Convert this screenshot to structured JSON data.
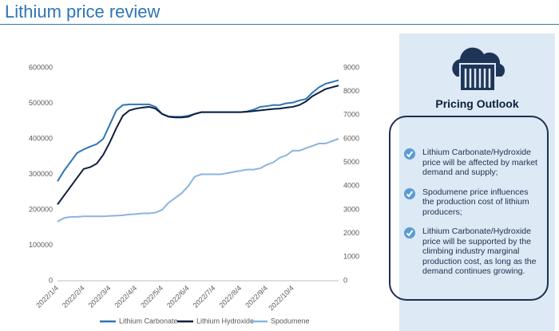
{
  "header": {
    "title": "Lithium price review"
  },
  "chart_data": {
    "type": "line",
    "categories": [
      "2022/1/4",
      null,
      null,
      null,
      "2022/2/4",
      null,
      null,
      null,
      "2022/3/4",
      null,
      null,
      null,
      "2022/4/4",
      null,
      null,
      null,
      "2022/5/4",
      null,
      null,
      null,
      "2022/6/4",
      null,
      null,
      null,
      "2022/7/4",
      null,
      null,
      null,
      "2022/8/4",
      null,
      null,
      null,
      "2022/9/4",
      null,
      null,
      null,
      "2022/10/4",
      null,
      null,
      null,
      null,
      null,
      null,
      null
    ],
    "series": [
      {
        "name": "Lithium Carbonate",
        "color": "#2e75b6",
        "values": [
          280000,
          310000,
          335000,
          360000,
          370000,
          378000,
          385000,
          400000,
          440000,
          480000,
          495000,
          497000,
          497000,
          497000,
          497000,
          490000,
          470000,
          463000,
          462000,
          462000,
          465000,
          470000,
          475000,
          475000,
          475000,
          475000,
          475000,
          475000,
          475000,
          477000,
          482000,
          490000,
          492000,
          495000,
          495000,
          500000,
          502000,
          508000,
          512000,
          530000,
          545000,
          555000,
          560000,
          565000
        ]
      },
      {
        "name": "Lithium Hydroxide",
        "color": "#0d1f3c",
        "values": [
          215000,
          240000,
          265000,
          290000,
          315000,
          320000,
          330000,
          355000,
          390000,
          430000,
          465000,
          480000,
          485000,
          488000,
          490000,
          485000,
          470000,
          462000,
          460000,
          460000,
          462000,
          470000,
          475000,
          475000,
          475000,
          475000,
          475000,
          475000,
          475000,
          476000,
          478000,
          480000,
          482000,
          484000,
          485000,
          488000,
          490000,
          495000,
          505000,
          520000,
          530000,
          540000,
          545000,
          550000
        ]
      },
      {
        "name": "Spodumene",
        "color": "#8ab4e0",
        "axis": "y2",
        "values": [
          2500,
          2650,
          2700,
          2700,
          2720,
          2720,
          2720,
          2720,
          2740,
          2750,
          2770,
          2800,
          2820,
          2850,
          2850,
          2880,
          3000,
          3300,
          3500,
          3700,
          4000,
          4400,
          4500,
          4500,
          4500,
          4500,
          4550,
          4600,
          4650,
          4700,
          4700,
          4750,
          4900,
          5000,
          5200,
          5300,
          5500,
          5500,
          5600,
          5700,
          5800,
          5800,
          5900,
          6000
        ]
      }
    ],
    "ylim": [
      0,
      600000
    ],
    "yticks": [
      0,
      100000,
      200000,
      300000,
      400000,
      500000,
      600000
    ],
    "y2lim": [
      0,
      9000
    ],
    "y2ticks": [
      0,
      1000,
      2000,
      3000,
      4000,
      5000,
      6000,
      7000,
      8000,
      9000
    ],
    "legend": "bottom",
    "grid": false
  },
  "panel": {
    "heading": "Pricing Outlook",
    "items": [
      "Lithium Carbonate/Hydroxide price will be affected by market demand and supply;",
      "Spodumene price influences the production cost of lithium producers;",
      "Lithium Carbonate/Hydroxide price will be supported by the climbing industry marginal production cost, as long as the demand continues growing."
    ]
  }
}
